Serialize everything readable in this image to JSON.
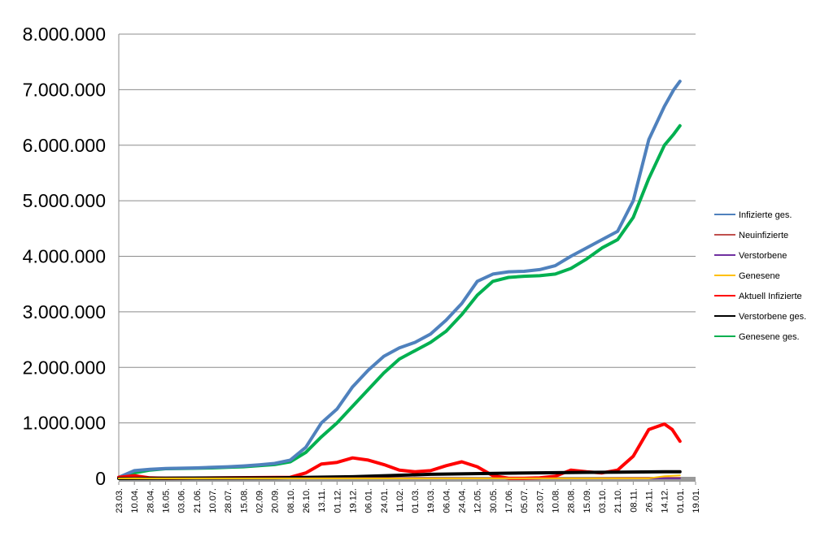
{
  "chart_data": {
    "type": "line",
    "ylim": [
      0,
      8000000
    ],
    "y_ticks": [
      0,
      1000000,
      2000000,
      3000000,
      4000000,
      5000000,
      6000000,
      7000000,
      8000000
    ],
    "y_tick_labels": [
      "0",
      "1.000.000",
      "2.000.000",
      "3.000.000",
      "4.000.000",
      "5.000.000",
      "6.000.000",
      "7.000.000",
      "8.000.000"
    ],
    "x_tick_labels": [
      "23.03.",
      "10.04.",
      "28.04.",
      "16.05.",
      "03.06.",
      "21.06.",
      "10.07.",
      "28.07.",
      "15.08.",
      "02.09.",
      "20.09.",
      "08.10.",
      "26.10.",
      "13.11.",
      "01.12.",
      "19.12.",
      "06.01.",
      "24.01.",
      "11.02.",
      "01.03.",
      "19.03.",
      "06.04.",
      "24.04.",
      "12.05.",
      "30.05.",
      "17.06.",
      "05.07.",
      "23.07.",
      "10.08.",
      "28.08.",
      "15.09.",
      "03.10.",
      "21.10.",
      "08.11.",
      "26.11.",
      "14.12.",
      "01.01.",
      "19.01."
    ],
    "x_index_range": [
      0,
      37
    ],
    "grid": true,
    "legend_position": "right",
    "series": [
      {
        "name": "Infizierte ges.",
        "color": "#4f81bd",
        "width": 4,
        "x": [
          0,
          1,
          2,
          3,
          4,
          5,
          6,
          7,
          8,
          9,
          10,
          11,
          12,
          13,
          14,
          15,
          16,
          17,
          18,
          19,
          20,
          21,
          22,
          23,
          24,
          25,
          26,
          27,
          28,
          29,
          30,
          31,
          32,
          33,
          34,
          35,
          35.6,
          36
        ],
        "values": [
          20000,
          140000,
          165000,
          180000,
          185000,
          190000,
          200000,
          210000,
          225000,
          245000,
          270000,
          330000,
          560000,
          1000000,
          1250000,
          1650000,
          1950000,
          2200000,
          2350000,
          2450000,
          2600000,
          2850000,
          3150000,
          3550000,
          3680000,
          3720000,
          3730000,
          3760000,
          3830000,
          4000000,
          4150000,
          4300000,
          4450000,
          5000000,
          6100000,
          6700000,
          7000000,
          7150000
        ]
      },
      {
        "name": "Neuinfizierte",
        "color": "#c0504d",
        "width": 2,
        "x": [
          0,
          1,
          2,
          12,
          16,
          22,
          24,
          30,
          34,
          36
        ],
        "values": [
          5000,
          8000,
          2000,
          3000,
          8000,
          6000,
          3000,
          4000,
          12000,
          10000
        ]
      },
      {
        "name": "Verstorbene",
        "color": "#7030a0",
        "width": 2,
        "x": [
          0,
          36
        ],
        "values": [
          0,
          0
        ]
      },
      {
        "name": "Genesene",
        "color": "#ffc000",
        "width": 2,
        "x": [
          0,
          34,
          35,
          36
        ],
        "values": [
          0,
          2000,
          40000,
          55000
        ]
      },
      {
        "name": "Aktuell Infizierte",
        "color": "#ff0000",
        "width": 4,
        "x": [
          0,
          1,
          2,
          3,
          11,
          12,
          13,
          14,
          15,
          16,
          17,
          18,
          19,
          20,
          21,
          22,
          23,
          24,
          25,
          26,
          27,
          28,
          29,
          30,
          31,
          32,
          33,
          34,
          35,
          35.5,
          36
        ],
        "values": [
          20000,
          50000,
          10000,
          5000,
          20000,
          100000,
          260000,
          290000,
          370000,
          330000,
          250000,
          150000,
          120000,
          140000,
          230000,
          300000,
          210000,
          50000,
          5000,
          5000,
          10000,
          40000,
          150000,
          120000,
          100000,
          150000,
          400000,
          880000,
          980000,
          880000,
          670000
        ]
      },
      {
        "name": "Verstorbene ges.",
        "color": "#000000",
        "width": 4,
        "x": [
          0,
          5,
          10,
          15,
          20,
          25,
          30,
          35,
          36
        ],
        "values": [
          0,
          8000,
          12000,
          30000,
          75000,
          95000,
          110000,
          120000,
          120000
        ]
      },
      {
        "name": "Genesene ges.",
        "color": "#00b050",
        "width": 4,
        "x": [
          0,
          1,
          2,
          3,
          4,
          5,
          6,
          7,
          8,
          9,
          10,
          11,
          12,
          13,
          14,
          15,
          16,
          17,
          18,
          19,
          20,
          21,
          22,
          23,
          24,
          25,
          26,
          27,
          28,
          29,
          30,
          31,
          32,
          33,
          34,
          35,
          35.6,
          36
        ],
        "values": [
          0,
          100000,
          150000,
          175000,
          180000,
          185000,
          190000,
          200000,
          210000,
          230000,
          250000,
          300000,
          470000,
          750000,
          1000000,
          1300000,
          1600000,
          1900000,
          2150000,
          2300000,
          2450000,
          2650000,
          2950000,
          3300000,
          3550000,
          3620000,
          3640000,
          3650000,
          3680000,
          3780000,
          3950000,
          4150000,
          4300000,
          4700000,
          5400000,
          6000000,
          6200000,
          6350000
        ]
      }
    ]
  }
}
